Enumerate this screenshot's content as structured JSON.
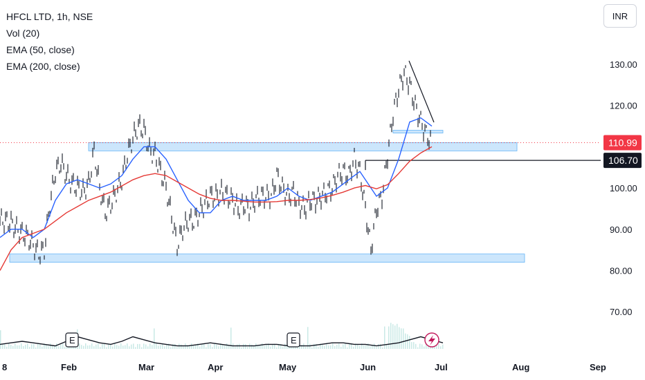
{
  "legend": {
    "symbol": "HFCL LTD, 1h, NSE",
    "volume": "Vol (20)",
    "ema50": "EMA (50, close)",
    "ema200": "EMA (200, close)"
  },
  "currency": "INR",
  "colors": {
    "ema50": "#2962ff",
    "ema200": "#e53935",
    "candles": "#131722",
    "zone": "#bbdefb",
    "last_price_badge": "#f23645",
    "level_badge": "#131722"
  },
  "icons": {
    "earnings": "earnings-e-icon",
    "dividend": "flash-icon"
  },
  "chart_data": {
    "type": "line",
    "title": "HFCL LTD, 1h, NSE",
    "y_axis": {
      "ticks": [
        "130.00",
        "120.00",
        "100.00",
        "90.00",
        "80.00",
        "70.00"
      ],
      "ylim": [
        60,
        135
      ]
    },
    "x_axis": {
      "ticks": [
        "8",
        "Feb",
        "Mar",
        "Apr",
        "May",
        "Jun",
        "Jul",
        "Aug",
        "Sep"
      ]
    },
    "last_price": "110.99",
    "marked_level": "106.70",
    "price": {
      "x": [
        0,
        8,
        16,
        24,
        32,
        40,
        48,
        56,
        64,
        72,
        80,
        88,
        96,
        104,
        112,
        120,
        128,
        136,
        144,
        152,
        160,
        168,
        176,
        184,
        192,
        200,
        208,
        216,
        224,
        232,
        240,
        248,
        256,
        264,
        272,
        280,
        288,
        296,
        304,
        312,
        320,
        328,
        336,
        344,
        352,
        360,
        368,
        376,
        384,
        392,
        400,
        408,
        416,
        424,
        432,
        440,
        448,
        456,
        464,
        472,
        480,
        488,
        496,
        504,
        512,
        520,
        528,
        536,
        544,
        552,
        560,
        568,
        576,
        584,
        592,
        600,
        608,
        616,
        624
      ],
      "values": [
        92,
        92,
        91.5,
        90,
        89,
        88,
        86,
        84,
        85,
        96,
        104,
        106,
        103,
        101,
        100,
        99,
        101,
        109,
        100,
        94,
        96,
        99,
        102,
        108,
        112,
        115,
        114,
        109,
        108,
        104,
        100,
        93,
        86,
        90,
        92,
        92,
        94,
        96,
        98,
        98,
        99,
        98,
        97,
        95,
        96,
        95,
        97,
        98,
        98,
        98,
        103,
        100,
        98,
        99,
        96,
        95,
        97,
        97,
        98,
        99,
        100,
        103,
        104,
        103,
        107,
        104,
        95,
        85,
        95,
        98,
        108,
        118,
        124,
        128,
        125,
        120,
        116,
        113,
        110.99
      ]
    },
    "series": [
      {
        "name": "EMA (50, close)",
        "x": [
          0,
          16,
          32,
          48,
          64,
          80,
          96,
          112,
          128,
          144,
          160,
          176,
          192,
          208,
          224,
          240,
          256,
          272,
          288,
          304,
          320,
          336,
          352,
          368,
          384,
          400,
          416,
          432,
          448,
          464,
          480,
          496,
          512,
          520,
          528,
          544,
          560,
          576,
          592,
          608,
          624
        ],
        "values": [
          88,
          90,
          90,
          88,
          90,
          97,
          101,
          102,
          101,
          100,
          101,
          103,
          107,
          110,
          110,
          107,
          102,
          97,
          94,
          94,
          97,
          98,
          97,
          97,
          97,
          98,
          100,
          98,
          97,
          98,
          99,
          101,
          103,
          104,
          102,
          98,
          100,
          107,
          116,
          117,
          115
        ]
      },
      {
        "name": "EMA (200, close)",
        "x": [
          0,
          16,
          32,
          48,
          64,
          80,
          96,
          112,
          128,
          144,
          160,
          176,
          192,
          208,
          224,
          240,
          256,
          272,
          288,
          304,
          320,
          336,
          352,
          368,
          384,
          400,
          416,
          432,
          448,
          464,
          480,
          496,
          512,
          528,
          544,
          560,
          576,
          592,
          608,
          624
        ],
        "values": [
          80,
          85,
          88,
          89,
          90,
          92,
          94,
          95.5,
          97,
          98,
          99,
          100.5,
          102,
          103,
          103.5,
          103,
          101.5,
          100,
          98.5,
          97.5,
          97,
          97,
          96.8,
          96.6,
          96.6,
          96.7,
          97,
          97,
          97.2,
          97.6,
          98.2,
          99,
          100,
          100.6,
          99.8,
          100.8,
          103.5,
          106.5,
          108.5,
          110
        ]
      }
    ],
    "zones": [
      {
        "from": 82,
        "to": 84
      },
      {
        "from": 109,
        "to": 111
      },
      {
        "from": 113.5,
        "to": 114
      }
    ],
    "volume_baseline_values": [
      3,
      4,
      5,
      4,
      3,
      2,
      5,
      8,
      6,
      4,
      3,
      5,
      8,
      6,
      4,
      3,
      2,
      2,
      3,
      4,
      3,
      2,
      2,
      2,
      3,
      3,
      2,
      2,
      2,
      3,
      4,
      4,
      3,
      3,
      2,
      3,
      4,
      6,
      8,
      6,
      4
    ]
  }
}
